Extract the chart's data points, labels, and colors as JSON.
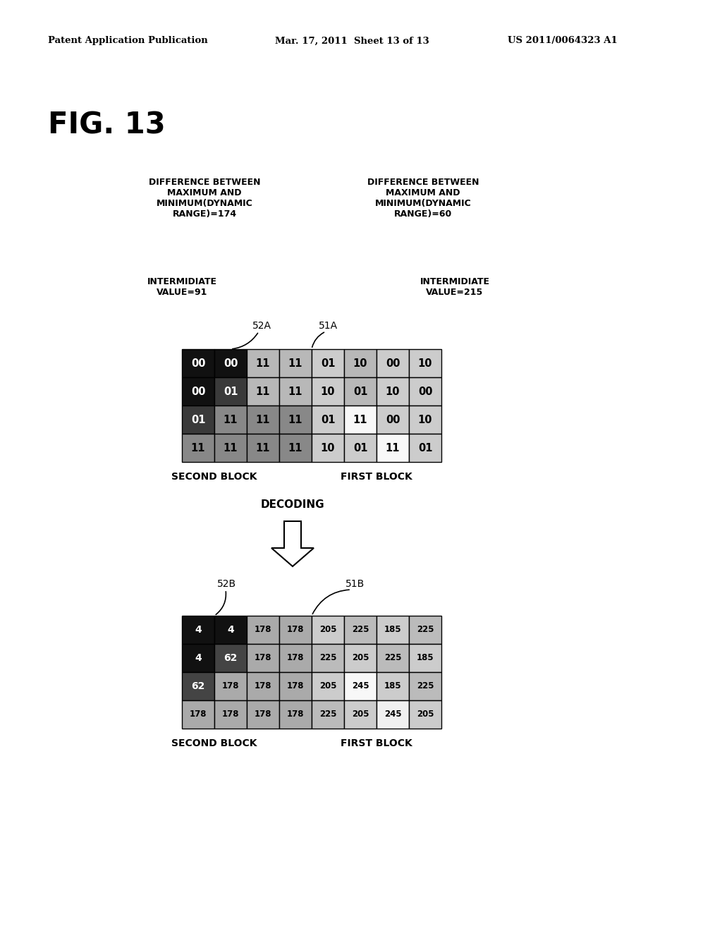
{
  "header_left": "Patent Application Publication",
  "header_mid": "Mar. 17, 2011  Sheet 13 of 13",
  "header_right": "US 2011/0064323 A1",
  "fig_label": "FIG. 13",
  "left_label1": "DIFFERENCE BETWEEN\nMAXIMUM AND\nMINIMUM(DYNAMIC\nRANGE)=174",
  "left_label2": "INTERMIDIATE\nVALUE=91",
  "right_label1": "DIFFERENCE BETWEEN\nMAXIMUM AND\nMINIMUM(DYNAMIC\nRANGE)=60",
  "right_label2": "INTERMIDIATE\nVALUE=215",
  "label_52A": "52A",
  "label_51A": "51A",
  "label_52B": "52B",
  "label_51B": "51B",
  "decoding_label": "DECODING",
  "second_block": "SECOND BLOCK",
  "first_block": "FIRST BLOCK",
  "top_grid": [
    [
      "00",
      "00",
      "11",
      "11",
      "01",
      "10",
      "00",
      "10"
    ],
    [
      "00",
      "01",
      "11",
      "11",
      "10",
      "01",
      "10",
      "00"
    ],
    [
      "01",
      "11",
      "11",
      "11",
      "01",
      "11",
      "00",
      "10"
    ],
    [
      "11",
      "11",
      "11",
      "11",
      "10",
      "01",
      "11",
      "01"
    ]
  ],
  "top_grid_colors": [
    [
      "#111111",
      "#111111",
      "#b8b8b8",
      "#b8b8b8",
      "#cccccc",
      "#b8b8b8",
      "#cccccc",
      "#cccccc"
    ],
    [
      "#111111",
      "#3a3a3a",
      "#b8b8b8",
      "#b8b8b8",
      "#cccccc",
      "#b8b8b8",
      "#cccccc",
      "#cccccc"
    ],
    [
      "#3a3a3a",
      "#888888",
      "#888888",
      "#888888",
      "#cccccc",
      "#f8f8f8",
      "#cccccc",
      "#cccccc"
    ],
    [
      "#888888",
      "#888888",
      "#888888",
      "#888888",
      "#cccccc",
      "#cccccc",
      "#f8f8f8",
      "#cccccc"
    ]
  ],
  "top_text_colors": [
    [
      "white",
      "white",
      "black",
      "black",
      "black",
      "black",
      "black",
      "black"
    ],
    [
      "white",
      "white",
      "black",
      "black",
      "black",
      "black",
      "black",
      "black"
    ],
    [
      "white",
      "black",
      "black",
      "black",
      "black",
      "black",
      "black",
      "black"
    ],
    [
      "black",
      "black",
      "black",
      "black",
      "black",
      "black",
      "black",
      "black"
    ]
  ],
  "bottom_grid": [
    [
      "4",
      "4",
      "178",
      "178",
      "205",
      "225",
      "185",
      "225"
    ],
    [
      "4",
      "62",
      "178",
      "178",
      "225",
      "205",
      "225",
      "185"
    ],
    [
      "62",
      "178",
      "178",
      "178",
      "205",
      "245",
      "185",
      "225"
    ],
    [
      "178",
      "178",
      "178",
      "178",
      "225",
      "205",
      "245",
      "205"
    ]
  ],
  "bottom_grid_colors": [
    [
      "#111111",
      "#111111",
      "#aaaaaa",
      "#aaaaaa",
      "#cccccc",
      "#bbbbbb",
      "#cccccc",
      "#bbbbbb"
    ],
    [
      "#111111",
      "#444444",
      "#aaaaaa",
      "#aaaaaa",
      "#bbbbbb",
      "#cccccc",
      "#bbbbbb",
      "#cccccc"
    ],
    [
      "#444444",
      "#aaaaaa",
      "#aaaaaa",
      "#aaaaaa",
      "#cccccc",
      "#f8f8f8",
      "#cccccc",
      "#bbbbbb"
    ],
    [
      "#aaaaaa",
      "#aaaaaa",
      "#aaaaaa",
      "#aaaaaa",
      "#bbbbbb",
      "#cccccc",
      "#f0f0f0",
      "#cccccc"
    ]
  ],
  "bottom_text_colors": [
    [
      "white",
      "white",
      "black",
      "black",
      "black",
      "black",
      "black",
      "black"
    ],
    [
      "white",
      "white",
      "black",
      "black",
      "black",
      "black",
      "black",
      "black"
    ],
    [
      "white",
      "black",
      "black",
      "black",
      "black",
      "black",
      "black",
      "black"
    ],
    [
      "black",
      "black",
      "black",
      "black",
      "black",
      "black",
      "black",
      "black"
    ]
  ]
}
